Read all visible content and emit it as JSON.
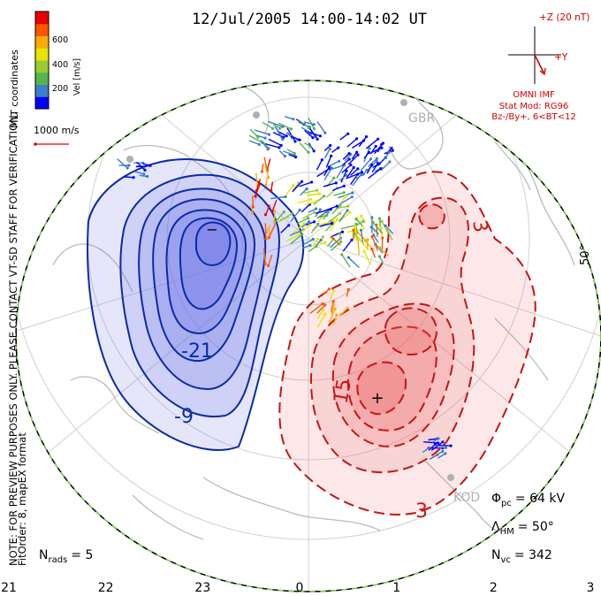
{
  "header": {
    "title": "12/Jul/2005 14:00-14:02 UT"
  },
  "colorbar": {
    "label": "Vel [m/s]",
    "ticks": [
      "600",
      "400",
      "200"
    ],
    "colors": [
      "#0000ff",
      "#3d7ec9",
      "#56b54a",
      "#99cc33",
      "#e6e600",
      "#ffaa00",
      "#ff5500",
      "#e80000"
    ]
  },
  "side_note": {
    "line1": "NOTE: FOR PREVIEW PURPOSES ONLY. PLEASE CONTACT VT-SD STAFF FOR VERIFICATION.",
    "line2": "FitOrder: 8, mapEX format",
    "coords": "MLT coordinates"
  },
  "scale_vector": {
    "label": "1000 m/s"
  },
  "imf": {
    "z_label": "+Z (20 nT)",
    "y_label": "+Y",
    "source": "OMNI IMF",
    "model": "Stat Mod: RG96",
    "condition": "Bz-/By+, 6<BT<12"
  },
  "stations": [
    "GBR",
    "KOD"
  ],
  "latitude_label": "50°",
  "contours": {
    "negative_labels": [
      "-21",
      "-9"
    ],
    "positive_labels": [
      "3",
      "3",
      "15"
    ],
    "min_marker": "−",
    "max_marker": "+"
  },
  "stats": {
    "phi_pc": "Φ",
    "phi_sub": "pc",
    "phi_value": "= 64 kV",
    "lambda": "Λ",
    "lambda_sub": "HM",
    "lambda_value": "= 50°",
    "nvc": "N",
    "nvc_sub": "vc",
    "nvc_value": "= 342",
    "nrads": "N",
    "nrads_sub": "rads",
    "nrads_value": "= 5"
  },
  "mlt_axis": [
    "21",
    "22",
    "23",
    "0",
    "1",
    "2",
    "3"
  ],
  "colors": {
    "negative_line": "#0b2ba8",
    "negative_fill": "#6f77e6",
    "positive_line": "#c81414",
    "positive_fill": "#ea6868",
    "coast": "#bbbbbb",
    "text_red": "#d40000"
  }
}
